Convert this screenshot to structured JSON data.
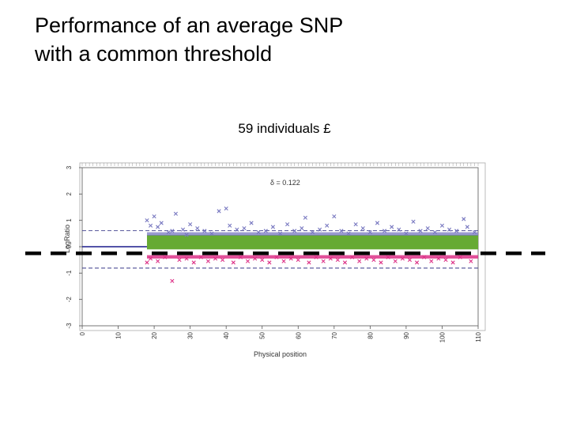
{
  "slide": {
    "title_line1": "Performance of an average SNP",
    "title_line2": "with a common threshold",
    "subtitle": "59 individuals £"
  },
  "chart_data": {
    "type": "scatter",
    "xlabel": "Physical position",
    "ylabel": "LogRatio",
    "annotation": "δ = 0.122",
    "xlim": [
      0,
      110
    ],
    "ylim": [
      -3,
      3
    ],
    "x_ticks": [
      0,
      10,
      20,
      30,
      40,
      50,
      60,
      70,
      80,
      90,
      100,
      110
    ],
    "y_ticks": [
      -3,
      -2,
      -1,
      0,
      1,
      2,
      3
    ],
    "reference_lines": [
      0.61,
      -0.81
    ],
    "threshold_line": -0.25,
    "data_start_x": 18,
    "colors": {
      "high": "#7878c0",
      "mid": "#66aa33",
      "low": "#dd3388",
      "threshold": "#000000",
      "zero_line": "#1a1a8c"
    },
    "outliers_high": [
      {
        "x": 18,
        "y": 1.0
      },
      {
        "x": 19,
        "y": 0.8
      },
      {
        "x": 20,
        "y": 1.15
      },
      {
        "x": 21,
        "y": 0.75
      },
      {
        "x": 22,
        "y": 0.9
      },
      {
        "x": 24,
        "y": 0.55
      },
      {
        "x": 25,
        "y": 0.6
      },
      {
        "x": 26,
        "y": 1.25
      },
      {
        "x": 28,
        "y": 0.65
      },
      {
        "x": 29,
        "y": 0.45
      },
      {
        "x": 30,
        "y": 0.85
      },
      {
        "x": 32,
        "y": 0.7
      },
      {
        "x": 34,
        "y": 0.6
      },
      {
        "x": 36,
        "y": 0.5
      },
      {
        "x": 38,
        "y": 1.35
      },
      {
        "x": 40,
        "y": 1.45
      },
      {
        "x": 41,
        "y": 0.8
      },
      {
        "x": 43,
        "y": 0.65
      },
      {
        "x": 45,
        "y": 0.7
      },
      {
        "x": 47,
        "y": 0.9
      },
      {
        "x": 49,
        "y": 0.55
      },
      {
        "x": 51,
        "y": 0.6
      },
      {
        "x": 53,
        "y": 0.75
      },
      {
        "x": 55,
        "y": 0.5
      },
      {
        "x": 57,
        "y": 0.85
      },
      {
        "x": 59,
        "y": 0.6
      },
      {
        "x": 61,
        "y": 0.7
      },
      {
        "x": 62,
        "y": 1.1
      },
      {
        "x": 64,
        "y": 0.55
      },
      {
        "x": 66,
        "y": 0.65
      },
      {
        "x": 68,
        "y": 0.8
      },
      {
        "x": 70,
        "y": 1.15
      },
      {
        "x": 72,
        "y": 0.6
      },
      {
        "x": 74,
        "y": 0.5
      },
      {
        "x": 76,
        "y": 0.85
      },
      {
        "x": 78,
        "y": 0.7
      },
      {
        "x": 80,
        "y": 0.55
      },
      {
        "x": 82,
        "y": 0.9
      },
      {
        "x": 84,
        "y": 0.6
      },
      {
        "x": 86,
        "y": 0.75
      },
      {
        "x": 88,
        "y": 0.65
      },
      {
        "x": 90,
        "y": 0.5
      },
      {
        "x": 92,
        "y": 0.95
      },
      {
        "x": 94,
        "y": 0.6
      },
      {
        "x": 96,
        "y": 0.7
      },
      {
        "x": 98,
        "y": 0.55
      },
      {
        "x": 100,
        "y": 0.8
      },
      {
        "x": 102,
        "y": 0.65
      },
      {
        "x": 104,
        "y": 0.6
      },
      {
        "x": 106,
        "y": 1.05
      },
      {
        "x": 107,
        "y": 0.75
      },
      {
        "x": 109,
        "y": 0.55
      }
    ],
    "outliers_low": [
      {
        "x": 18,
        "y": -0.6
      },
      {
        "x": 19,
        "y": -0.45
      },
      {
        "x": 21,
        "y": -0.55
      },
      {
        "x": 23,
        "y": -0.4
      },
      {
        "x": 25,
        "y": -1.3
      },
      {
        "x": 27,
        "y": -0.5
      },
      {
        "x": 29,
        "y": -0.45
      },
      {
        "x": 31,
        "y": -0.6
      },
      {
        "x": 33,
        "y": -0.4
      },
      {
        "x": 35,
        "y": -0.55
      },
      {
        "x": 37,
        "y": -0.45
      },
      {
        "x": 39,
        "y": -0.5
      },
      {
        "x": 42,
        "y": -0.6
      },
      {
        "x": 44,
        "y": -0.4
      },
      {
        "x": 46,
        "y": -0.55
      },
      {
        "x": 48,
        "y": -0.45
      },
      {
        "x": 50,
        "y": -0.5
      },
      {
        "x": 52,
        "y": -0.6
      },
      {
        "x": 54,
        "y": -0.4
      },
      {
        "x": 56,
        "y": -0.55
      },
      {
        "x": 58,
        "y": -0.45
      },
      {
        "x": 60,
        "y": -0.5
      },
      {
        "x": 63,
        "y": -0.6
      },
      {
        "x": 65,
        "y": -0.4
      },
      {
        "x": 67,
        "y": -0.55
      },
      {
        "x": 69,
        "y": -0.45
      },
      {
        "x": 71,
        "y": -0.5
      },
      {
        "x": 73,
        "y": -0.6
      },
      {
        "x": 75,
        "y": -0.4
      },
      {
        "x": 77,
        "y": -0.55
      },
      {
        "x": 79,
        "y": -0.45
      },
      {
        "x": 81,
        "y": -0.5
      },
      {
        "x": 83,
        "y": -0.6
      },
      {
        "x": 85,
        "y": -0.4
      },
      {
        "x": 87,
        "y": -0.55
      },
      {
        "x": 89,
        "y": -0.45
      },
      {
        "x": 91,
        "y": -0.5
      },
      {
        "x": 93,
        "y": -0.6
      },
      {
        "x": 95,
        "y": -0.4
      },
      {
        "x": 97,
        "y": -0.55
      },
      {
        "x": 99,
        "y": -0.45
      },
      {
        "x": 101,
        "y": -0.5
      },
      {
        "x": 103,
        "y": -0.6
      },
      {
        "x": 105,
        "y": -0.4
      },
      {
        "x": 108,
        "y": -0.55
      }
    ]
  }
}
